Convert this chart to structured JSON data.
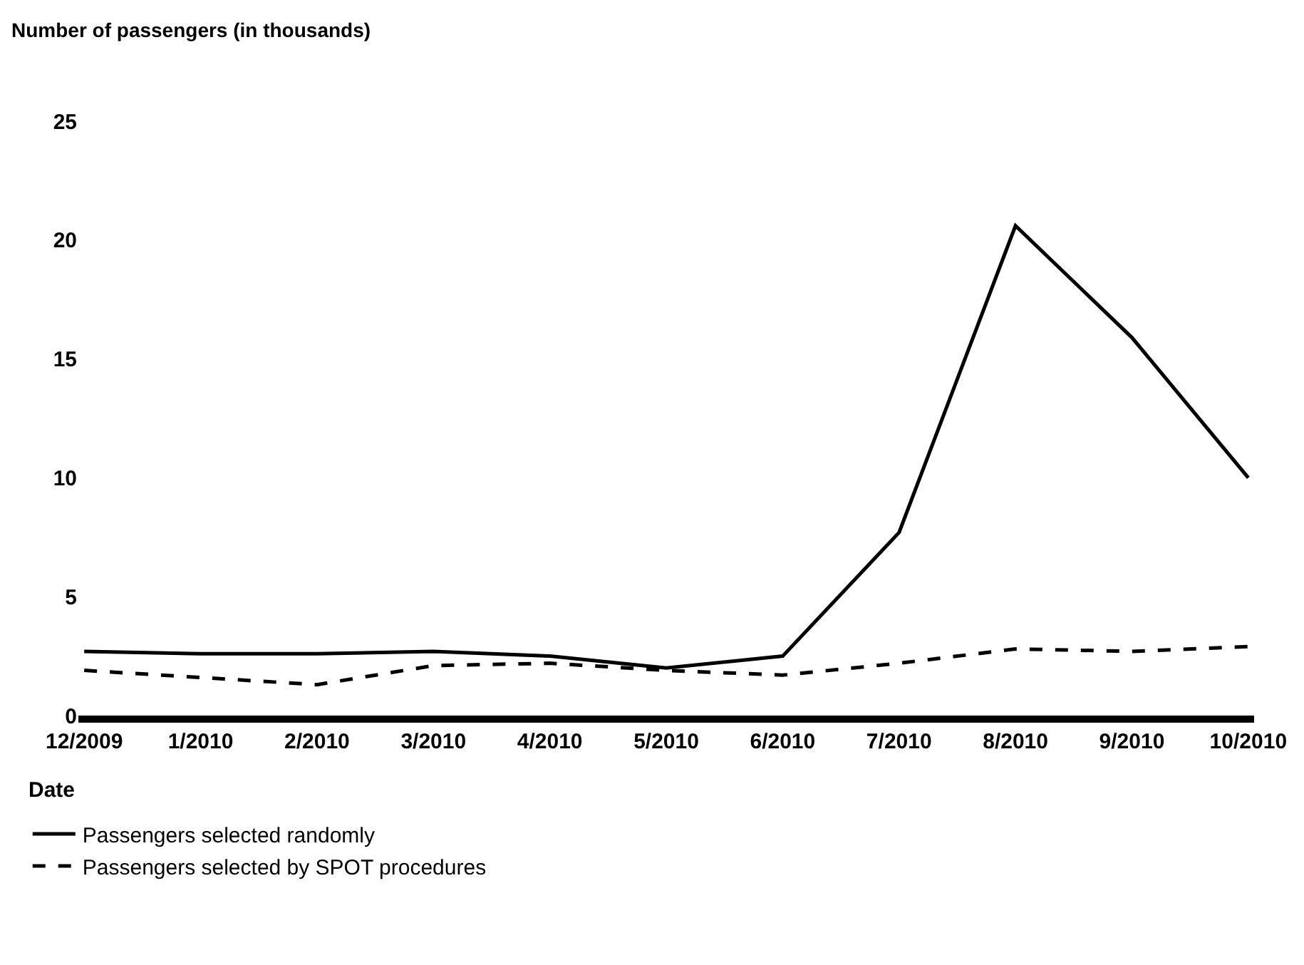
{
  "chart_data": {
    "type": "line",
    "ylabel": "Number of passengers (in thousands)",
    "xlabel": "Date",
    "categories": [
      "12/2009",
      "1/2010",
      "2/2010",
      "3/2010",
      "4/2010",
      "5/2010",
      "6/2010",
      "7/2010",
      "8/2010",
      "9/2010",
      "10/2010"
    ],
    "series": [
      {
        "name": "Passengers selected randomly",
        "color": "#000000",
        "line_style": "solid",
        "values": [
          2.7,
          2.6,
          2.6,
          2.7,
          2.5,
          2.0,
          2.5,
          7.7,
          20.6,
          15.9,
          10.0
        ]
      },
      {
        "name": "Passengers selected by SPOT procedures",
        "color": "#000000",
        "line_style": "dashed",
        "values": [
          1.9,
          1.6,
          1.3,
          2.1,
          2.2,
          1.9,
          1.7,
          2.2,
          2.8,
          2.7,
          2.9
        ]
      }
    ],
    "ylim": [
      0,
      25
    ],
    "yticks": [
      0,
      5,
      10,
      15,
      20,
      25
    ],
    "grid": false,
    "legend": "bottom left",
    "marker": "none"
  }
}
